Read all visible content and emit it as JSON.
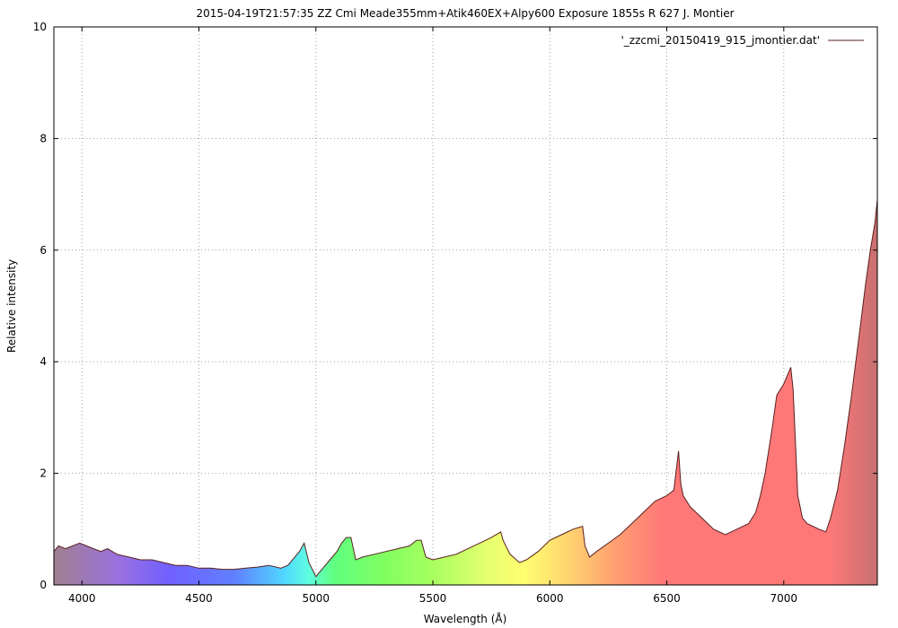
{
  "chart_data": {
    "type": "area",
    "title": "2015-04-19T21:57:35 ZZ Cmi Meade355mm+Atik460EX+Alpy600 Exposure 1855s R 627 J. Montier",
    "xlabel": "Wavelength (Å)",
    "ylabel": "Relative intensity",
    "xlim": [
      3880,
      7400
    ],
    "ylim": [
      0,
      10
    ],
    "x_ticks": [
      4000,
      4500,
      5000,
      5500,
      6000,
      6500,
      7000
    ],
    "y_ticks": [
      0,
      2,
      4,
      6,
      8,
      10
    ],
    "grid": true,
    "legend_position": "top-right",
    "line_color": "#5a2020",
    "fill": "spectral-rainbow",
    "series": [
      {
        "name": "'_zzcmi_20150419_915_jmontier.dat'",
        "x": [
          3880,
          3900,
          3930,
          3960,
          3990,
          4020,
          4050,
          4080,
          4110,
          4150,
          4200,
          4250,
          4300,
          4350,
          4400,
          4450,
          4500,
          4550,
          4600,
          4650,
          4700,
          4750,
          4800,
          4850,
          4880,
          4910,
          4930,
          4950,
          4970,
          5000,
          5030,
          5060,
          5090,
          5110,
          5130,
          5150,
          5170,
          5200,
          5250,
          5300,
          5350,
          5400,
          5430,
          5450,
          5470,
          5500,
          5550,
          5600,
          5650,
          5700,
          5750,
          5790,
          5800,
          5830,
          5870,
          5900,
          5950,
          6000,
          6050,
          6100,
          6140,
          6150,
          6170,
          6200,
          6250,
          6300,
          6350,
          6400,
          6450,
          6500,
          6530,
          6550,
          6560,
          6570,
          6600,
          6650,
          6700,
          6750,
          6800,
          6850,
          6880,
          6900,
          6920,
          6950,
          6970,
          7000,
          7030,
          7040,
          7060,
          7080,
          7100,
          7150,
          7180,
          7200,
          7230,
          7260,
          7290,
          7320,
          7350,
          7370,
          7390,
          7400
        ],
        "y": [
          0.6,
          0.7,
          0.65,
          0.7,
          0.75,
          0.7,
          0.65,
          0.6,
          0.65,
          0.55,
          0.5,
          0.45,
          0.45,
          0.4,
          0.35,
          0.35,
          0.3,
          0.3,
          0.28,
          0.28,
          0.3,
          0.32,
          0.35,
          0.3,
          0.35,
          0.5,
          0.6,
          0.75,
          0.4,
          0.15,
          0.3,
          0.45,
          0.6,
          0.75,
          0.85,
          0.85,
          0.45,
          0.5,
          0.55,
          0.6,
          0.65,
          0.7,
          0.8,
          0.8,
          0.5,
          0.45,
          0.5,
          0.55,
          0.65,
          0.75,
          0.85,
          0.95,
          0.8,
          0.55,
          0.4,
          0.45,
          0.6,
          0.8,
          0.9,
          1.0,
          1.05,
          0.7,
          0.5,
          0.6,
          0.75,
          0.9,
          1.1,
          1.3,
          1.5,
          1.6,
          1.7,
          2.4,
          1.8,
          1.6,
          1.4,
          1.2,
          1.0,
          0.9,
          1.0,
          1.1,
          1.3,
          1.6,
          2.0,
          2.8,
          3.4,
          3.6,
          3.9,
          3.5,
          1.6,
          1.2,
          1.1,
          1.0,
          0.95,
          1.2,
          1.7,
          2.5,
          3.4,
          4.4,
          5.4,
          6.0,
          6.5,
          6.9
        ]
      }
    ]
  }
}
